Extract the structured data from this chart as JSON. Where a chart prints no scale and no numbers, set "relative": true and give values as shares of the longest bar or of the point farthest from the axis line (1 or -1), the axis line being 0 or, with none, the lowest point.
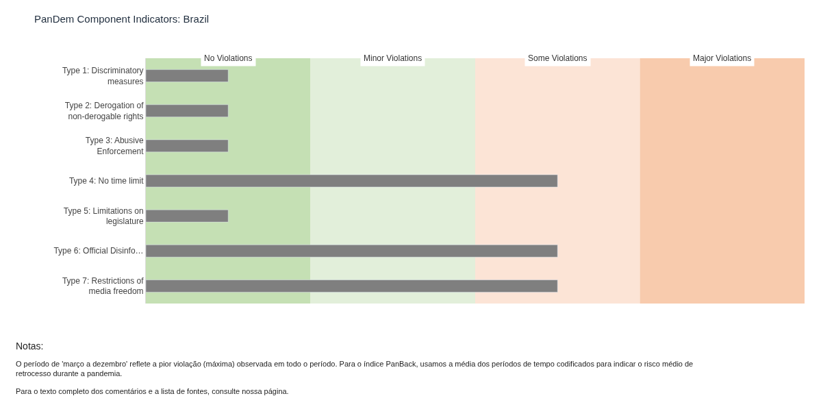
{
  "chart_data": {
    "type": "bar",
    "orientation": "horizontal",
    "relative": true,
    "title": "PanDem Component Indicators: Brazil",
    "categories": [
      "Type 1: Discriminatory measures",
      "Type 2: Derogation of non-derogable rights",
      "Type 3: Abusive Enforcement",
      "Type 4: No time limit",
      "Type 5: Limitations on legislature",
      "Type 6: Official Disinfo…",
      "Type 7: Restrictions of media freedom"
    ],
    "values": [
      0.2,
      0.2,
      0.2,
      1,
      0.2,
      1,
      1
    ],
    "color": "#7f7f7f",
    "bands": [
      {
        "axis": "x",
        "from": 0,
        "to": 0.4,
        "label": "No Violations",
        "color": "#c5e0b4"
      },
      {
        "axis": "x",
        "from": 0.4,
        "to": 0.8,
        "label": "Minor Violations",
        "color": "#e2efda"
      },
      {
        "axis": "x",
        "from": 0.8,
        "to": 1.2,
        "label": "Some Violations",
        "color": "#fce4d6"
      },
      {
        "axis": "x",
        "from": 1.2,
        "to": 1.6,
        "label": "Major Violations",
        "color": "#f8cbad"
      }
    ],
    "annotations": [
      "Notas:",
      "O período de 'março a dezembro' reflete a pior violação (máxima) observada em todo o período. Para o índice PanBack, usamos a média dos períodos de tempo codificados para indicar o risco médio de retrocesso durante a pandemia.",
      "Para o texto completo dos comentários e a lista de fontes, consulte nossa página."
    ],
    "grid": false
  }
}
